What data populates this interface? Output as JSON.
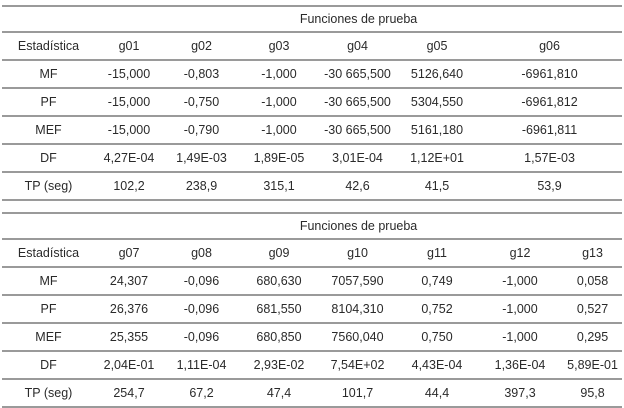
{
  "tables": [
    {
      "group_header": "Funciones de prueba",
      "columns": [
        "Estadística",
        "g01",
        "g02",
        "g03",
        "g04",
        "g05",
        "g06"
      ],
      "rows": [
        [
          "MF",
          "-15,000",
          "-0,803",
          "-1,000",
          "-30 665,500",
          "5126,640",
          "-6961,810"
        ],
        [
          "PF",
          "-15,000",
          "-0,750",
          "-1,000",
          "-30 665,500",
          "5304,550",
          "-6961,812"
        ],
        [
          "MEF",
          "-15,000",
          "-0,790",
          "-1,000",
          "-30 665,500",
          "5161,180",
          "-6961,811"
        ],
        [
          "DF",
          "4,27E-04",
          "1,49E-03",
          "1,89E-05",
          "3,01E-04",
          "1,12E+01",
          "1,57E-03"
        ],
        [
          "TP (seg)",
          "102,2",
          "238,9",
          "315,1",
          "42,6",
          "41,5",
          "53,9"
        ]
      ]
    },
    {
      "group_header": "Funciones de prueba",
      "columns": [
        "Estadística",
        "g07",
        "g08",
        "g09",
        "g10",
        "g11",
        "g12",
        "g13"
      ],
      "rows": [
        [
          "MF",
          "24,307",
          "-0,096",
          "680,630",
          "7057,590",
          "0,749",
          "-1,000",
          "0,058"
        ],
        [
          "PF",
          "26,376",
          "-0,096",
          "681,550",
          "8104,310",
          "0,752",
          "-1,000",
          "0,527"
        ],
        [
          "MEF",
          "25,355",
          "-0,096",
          "680,850",
          "7560,040",
          "0,750",
          "-1,000",
          "0,295"
        ],
        [
          "DF",
          "2,04E-01",
          "1,11E-04",
          "2,93E-02",
          "7,54E+02",
          "4,43E-04",
          "1,36E-04",
          "5,89E-01"
        ],
        [
          "TP (seg)",
          "254,7",
          "67,2",
          "47,4",
          "101,7",
          "44,4",
          "397,3",
          "95,8"
        ]
      ]
    }
  ]
}
